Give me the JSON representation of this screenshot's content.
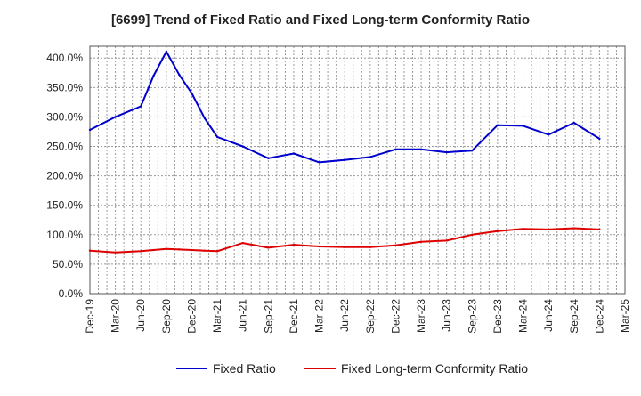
{
  "chart_data": {
    "type": "line",
    "title": "[6699]  Trend of Fixed Ratio and Fixed Long-term Conformity Ratio",
    "xlabel": "",
    "ylabel": "",
    "x_ticks": [
      "Dec-19",
      "Mar-20",
      "Jun-20",
      "Sep-20",
      "Dec-20",
      "Mar-21",
      "Jun-21",
      "Sep-21",
      "Dec-21",
      "Mar-22",
      "Jun-22",
      "Sep-22",
      "Dec-22",
      "Mar-23",
      "Jun-23",
      "Sep-23",
      "Dec-23",
      "Mar-24",
      "Jun-24",
      "Sep-24",
      "Dec-24",
      "Mar-25"
    ],
    "y_ticks": [
      "0.0%",
      "50.0%",
      "100.0%",
      "150.0%",
      "200.0%",
      "250.0%",
      "300.0%",
      "350.0%",
      "400.0%"
    ],
    "ylim": [
      0,
      420
    ],
    "grid": true,
    "legend_position": "bottom",
    "x": [
      0,
      1,
      2,
      2.5,
      3,
      3.5,
      4,
      4.5,
      5,
      6,
      7,
      8,
      9,
      10,
      11,
      12,
      13,
      14,
      15,
      16,
      17,
      18,
      19,
      20
    ],
    "series": [
      {
        "name": "Fixed Ratio",
        "color": "#0000cc",
        "values": [
          278,
          300,
          318,
          370,
          411,
          372,
          340,
          298,
          266,
          250,
          230,
          238,
          223,
          227,
          232,
          245,
          245,
          240,
          243,
          286,
          285,
          270,
          290,
          263
        ]
      },
      {
        "name": "Fixed Long-term Conformity Ratio",
        "color": "#dd0000",
        "values": [
          73,
          70,
          72,
          74,
          76,
          75,
          74,
          73,
          72,
          86,
          78,
          83,
          80,
          79,
          79,
          82,
          88,
          90,
          100,
          106,
          110,
          109,
          111,
          109
        ]
      }
    ]
  }
}
